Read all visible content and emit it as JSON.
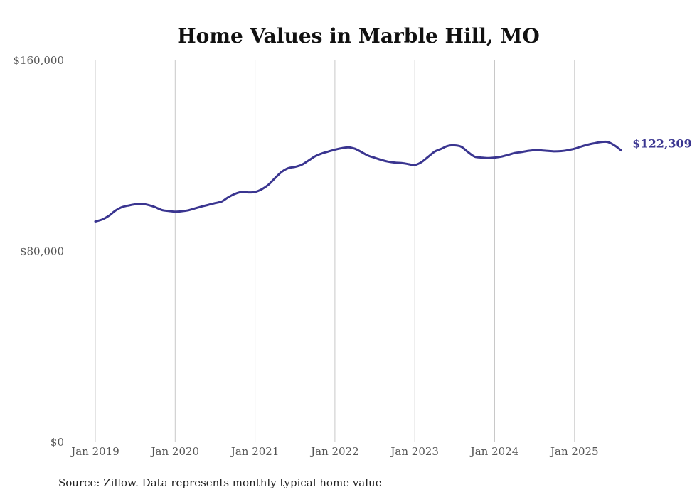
{
  "chart_data": {
    "type": "line",
    "title": "Home Values in Marble Hill, MO",
    "xlabel": "",
    "ylabel": "",
    "source": "Source: Zillow. Data represents monthly typical home value",
    "ylim": [
      0,
      160000
    ],
    "yticks": [
      0,
      80000,
      160000
    ],
    "ytick_labels": [
      "$0",
      "$80,000",
      "$160,000"
    ],
    "xticks": [
      "2019-01",
      "2020-01",
      "2021-01",
      "2022-01",
      "2023-01",
      "2024-01",
      "2025-01"
    ],
    "xtick_labels": [
      "Jan 2019",
      "Jan 2020",
      "Jan 2021",
      "Jan 2022",
      "Jan 2023",
      "Jan 2024",
      "Jan 2025"
    ],
    "x_start": "2019-01",
    "grid": "vertical",
    "legend": "none",
    "line_color": "#3a3590",
    "end_label": "$122,309",
    "series": [
      {
        "name": "Typical home value",
        "x": [
          "2019-01",
          "2019-02",
          "2019-03",
          "2019-04",
          "2019-05",
          "2019-06",
          "2019-07",
          "2019-08",
          "2019-09",
          "2019-10",
          "2019-11",
          "2019-12",
          "2020-01",
          "2020-02",
          "2020-03",
          "2020-04",
          "2020-05",
          "2020-06",
          "2020-07",
          "2020-08",
          "2020-09",
          "2020-10",
          "2020-11",
          "2020-12",
          "2021-01",
          "2021-02",
          "2021-03",
          "2021-04",
          "2021-05",
          "2021-06",
          "2021-07",
          "2021-08",
          "2021-09",
          "2021-10",
          "2021-11",
          "2021-12",
          "2022-01",
          "2022-02",
          "2022-03",
          "2022-04",
          "2022-05",
          "2022-06",
          "2022-07",
          "2022-08",
          "2022-09",
          "2022-10",
          "2022-11",
          "2022-12",
          "2023-01",
          "2023-02",
          "2023-03",
          "2023-04",
          "2023-05",
          "2023-06",
          "2023-07",
          "2023-08",
          "2023-09",
          "2023-10",
          "2023-11",
          "2023-12",
          "2024-01",
          "2024-02",
          "2024-03",
          "2024-04",
          "2024-05",
          "2024-06",
          "2024-07",
          "2024-08",
          "2024-09",
          "2024-10",
          "2024-11",
          "2024-12",
          "2025-01",
          "2025-02",
          "2025-03",
          "2025-04",
          "2025-05",
          "2025-06",
          "2025-07",
          "2025-08"
        ],
        "values": [
          92500,
          93300,
          94800,
          97000,
          98500,
          99200,
          99700,
          99900,
          99400,
          98500,
          97300,
          96900,
          96600,
          96800,
          97200,
          98000,
          98800,
          99500,
          100200,
          100900,
          102700,
          104100,
          104900,
          104700,
          104900,
          106000,
          107900,
          110700,
          113300,
          114900,
          115400,
          116300,
          118000,
          119800,
          121000,
          121800,
          122600,
          123200,
          123600,
          123000,
          121600,
          120100,
          119200,
          118300,
          117600,
          117200,
          117000,
          116600,
          116200,
          117400,
          119600,
          121800,
          123000,
          124200,
          124400,
          123800,
          121600,
          119700,
          119300,
          119100,
          119300,
          119700,
          120400,
          121200,
          121600,
          122100,
          122400,
          122300,
          122100,
          121900,
          122000,
          122400,
          123000,
          123900,
          124700,
          125300,
          125800,
          125800,
          124400,
          122309
        ]
      }
    ]
  }
}
